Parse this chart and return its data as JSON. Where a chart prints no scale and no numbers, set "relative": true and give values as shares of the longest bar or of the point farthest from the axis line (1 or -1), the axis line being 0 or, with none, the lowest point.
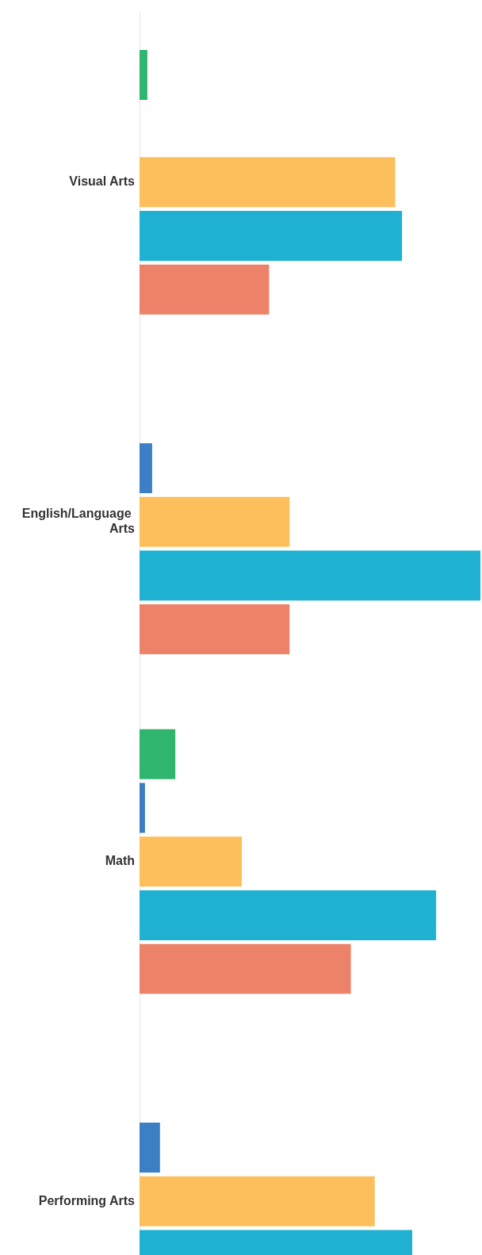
{
  "chart_data": {
    "type": "bar",
    "orientation": "horizontal",
    "relative": true,
    "categories": [
      "Visual Arts",
      "English/Language Arts",
      "Math",
      "Performing Arts"
    ],
    "series": [
      {
        "color": "#2fb56e",
        "values": [
          0.023,
          null,
          0.105,
          null
        ]
      },
      {
        "color": "#3d7fc4",
        "values": [
          null,
          0.037,
          0.016,
          0.06
        ]
      },
      {
        "color": "#fdbf5b",
        "values": [
          0.75,
          0.44,
          0.3,
          0.69
        ]
      },
      {
        "color": "#1fb1d1",
        "values": [
          0.77,
          1,
          0.87,
          0.8
        ]
      },
      {
        "color": "#ec8368",
        "values": [
          0.38,
          0.44,
          0.62,
          null
        ]
      }
    ],
    "legend": false
  }
}
